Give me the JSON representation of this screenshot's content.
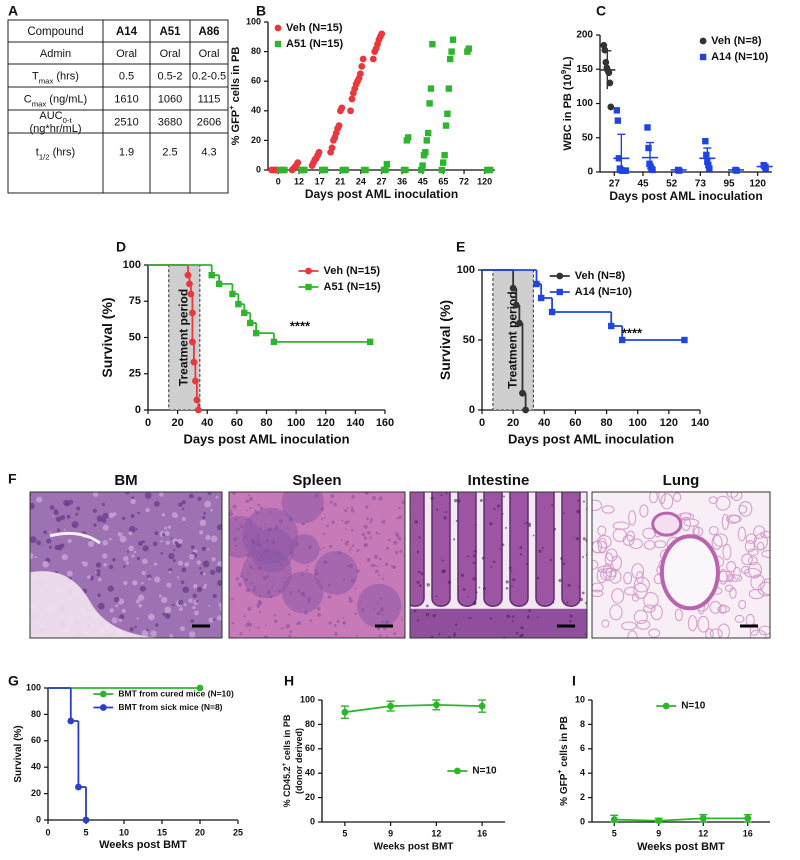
{
  "panel_a": {
    "label": "A",
    "table": {
      "header": [
        "Compound",
        "A14",
        "A51",
        "A86"
      ],
      "rows": [
        {
          "label": [
            [
              {
                "text": "Admin"
              }
            ]
          ],
          "cells": [
            "Oral",
            "Oral",
            "Oral"
          ]
        },
        {
          "label": [
            [
              {
                "text": "T"
              },
              {
                "text": "max",
                "script": "sub"
              },
              {
                "text": " (hrs)"
              }
            ]
          ],
          "cells": [
            "0.5",
            "0.5-2",
            "0.2-0.5"
          ]
        },
        {
          "label": [
            [
              {
                "text": "C"
              },
              {
                "text": "max",
                "script": "sub"
              },
              {
                "text": " (ng/mL)"
              }
            ]
          ],
          "cells": [
            "1610",
            "1060",
            "1115"
          ]
        },
        {
          "label": [
            [
              {
                "text": "AUC"
              },
              {
                "text": "0-t",
                "script": "sub"
              }
            ],
            [
              {
                "text": "(ng*hr/mL)"
              }
            ]
          ],
          "cells": [
            "2510",
            "3680",
            "2606"
          ]
        },
        {
          "label": [
            [
              {
                "text": "t"
              },
              {
                "text": "1/2",
                "script": "sub"
              },
              {
                "text": " (hrs)"
              }
            ]
          ],
          "cells": [
            "1.9",
            "2.5",
            "4.3"
          ]
        }
      ]
    }
  },
  "panel_f": {
    "label": "F",
    "images": [
      {
        "title": "BM"
      },
      {
        "title": "Spleen"
      },
      {
        "title": "Intestine"
      },
      {
        "title": "Lung"
      }
    ]
  },
  "chart_data": [
    {
      "panel": "B",
      "type": "scatter",
      "xlabel": "Days post AML inoculation",
      "ylabel": [
        [
          {
            "text": "% GFP"
          },
          {
            "text": "+",
            "script": "sup"
          },
          {
            "text": " cells in PB"
          }
        ]
      ],
      "categories": [
        "0",
        "12",
        "17",
        "21",
        "24",
        "27",
        "36",
        "45",
        "65",
        "72",
        "120"
      ],
      "ylim": [
        0,
        100
      ],
      "yticks": [
        0,
        20,
        40,
        60,
        80,
        100
      ],
      "legend": "upper left",
      "series": [
        {
          "name": "Veh (N=15)",
          "color": "#e8383d",
          "marker": "circle",
          "x": [
            "0",
            "0",
            "0",
            "0",
            "0",
            "12",
            "12",
            "12",
            "12",
            "12",
            "17",
            "17",
            "17",
            "17",
            "17",
            "17",
            "21",
            "21",
            "21",
            "21",
            "21",
            "21",
            "21",
            "21",
            "21",
            "24",
            "24",
            "24",
            "24",
            "24",
            "24",
            "24",
            "24",
            "24",
            "24",
            "27",
            "27",
            "27",
            "27",
            "27",
            "27",
            "27"
          ],
          "values": [
            0,
            0,
            0,
            0,
            0,
            0,
            1,
            2,
            3,
            5,
            3,
            5,
            7,
            8,
            10,
            12,
            12,
            15,
            20,
            22,
            25,
            28,
            30,
            40,
            42,
            40,
            48,
            52,
            55,
            58,
            60,
            62,
            65,
            70,
            75,
            75,
            80,
            82,
            85,
            88,
            90,
            92
          ]
        },
        {
          "name": "A51 (N=15)",
          "color": "#2db52d",
          "marker": "square",
          "x": [
            "0",
            "0",
            "0",
            "0",
            "12",
            "12",
            "12",
            "17",
            "17",
            "17",
            "21",
            "21",
            "21",
            "24",
            "24",
            "27",
            "27",
            "27",
            "36",
            "36",
            "36",
            "36",
            "45",
            "45",
            "45",
            "45",
            "45",
            "45",
            "45",
            "45",
            "45",
            "65",
            "65",
            "65",
            "65",
            "65",
            "65",
            "65",
            "65",
            "65",
            "72",
            "72",
            "120",
            "120",
            "120"
          ],
          "values": [
            0,
            0,
            0,
            0,
            0,
            0,
            0,
            0,
            0,
            0,
            0,
            0,
            0,
            0,
            0,
            0,
            0,
            4,
            0,
            0,
            20,
            22,
            0,
            3,
            10,
            12,
            20,
            25,
            45,
            55,
            85,
            0,
            5,
            10,
            30,
            38,
            55,
            75,
            80,
            88,
            80,
            82,
            0,
            0,
            0
          ]
        }
      ]
    },
    {
      "panel": "C",
      "type": "scatter",
      "xlabel": "Days post AML inoculation",
      "ylabel": [
        [
          {
            "text": "WBC in PB (10"
          },
          {
            "text": "9",
            "script": "sup"
          },
          {
            "text": "/L)"
          }
        ]
      ],
      "categories": [
        "27",
        "45",
        "52",
        "73",
        "95",
        "120"
      ],
      "ylim": [
        0,
        200
      ],
      "yticks": [
        0,
        50,
        100,
        150,
        200
      ],
      "legend": "upper right",
      "series": [
        {
          "name": "Veh (N=8)",
          "color": "#333333",
          "marker": "circle",
          "x": [
            "27",
            "27",
            "27",
            "27",
            "27",
            "27",
            "27",
            "27"
          ],
          "values": [
            185,
            178,
            160,
            152,
            148,
            145,
            130,
            95
          ],
          "summary": {
            "x": [
              "27"
            ],
            "mean": [
              149
            ],
            "sd": [
              28
            ]
          }
        },
        {
          "name": "A14 (N=10)",
          "color": "#1f44e0",
          "marker": "square",
          "x": [
            "27",
            "27",
            "27",
            "27",
            "27",
            "27",
            "27",
            "27",
            "27",
            "27",
            "45",
            "45",
            "45",
            "45",
            "45",
            "45",
            "52",
            "52",
            "73",
            "73",
            "73",
            "73",
            "73",
            "95",
            "95",
            "120",
            "120",
            "120"
          ],
          "values": [
            90,
            75,
            20,
            5,
            3,
            2,
            2,
            2,
            2,
            2,
            65,
            35,
            12,
            8,
            5,
            3,
            3,
            2,
            45,
            25,
            15,
            10,
            5,
            3,
            2,
            10,
            8,
            5
          ],
          "summary": {
            "x": [
              "27",
              "45",
              "52",
              "73",
              "95",
              "120"
            ],
            "mean": [
              20,
              21,
              3,
              20,
              3,
              8
            ],
            "sd": [
              35,
              22,
              1,
              15,
              1,
              3
            ]
          }
        }
      ]
    },
    {
      "panel": "D",
      "type": "survival",
      "xlabel": "Days post AML inoculation",
      "ylabel": [
        [
          {
            "text": "Survival (%)"
          }
        ]
      ],
      "xlim": [
        0,
        160
      ],
      "xticks": [
        0,
        20,
        40,
        60,
        80,
        100,
        120,
        140,
        160
      ],
      "ylim": [
        0,
        100
      ],
      "yticks": [
        0,
        25,
        50,
        75,
        100
      ],
      "legend": "upper right",
      "treatment_period": [
        14,
        35
      ],
      "treatment_label": "Treatment period",
      "annotation": "****",
      "series": [
        {
          "name": "Veh (N=15)",
          "color": "#e8383d",
          "marker": "circle",
          "x": [
            0,
            27,
            28,
            29,
            30,
            30,
            31,
            32,
            33,
            34
          ],
          "values": [
            100,
            93,
            87,
            80,
            67,
            47,
            33,
            20,
            7,
            0
          ]
        },
        {
          "name": "A51 (N=15)",
          "color": "#2db52d",
          "marker": "square",
          "x": [
            0,
            43,
            48,
            57,
            61,
            65,
            69,
            73,
            85,
            150
          ],
          "values": [
            100,
            93,
            87,
            80,
            73,
            67,
            60,
            53,
            47,
            47
          ]
        }
      ]
    },
    {
      "panel": "E",
      "type": "survival",
      "xlabel": "Days post AML inoculation",
      "ylabel": [
        [
          {
            "text": "Survival (%)"
          }
        ]
      ],
      "xlim": [
        0,
        140
      ],
      "xticks": [
        0,
        20,
        40,
        60,
        80,
        100,
        120,
        140
      ],
      "ylim": [
        0,
        100
      ],
      "yticks": [
        0,
        50,
        100
      ],
      "legend": "upper center",
      "treatment_period": [
        7,
        33
      ],
      "treatment_label": "Treatment period",
      "annotation": "****",
      "series": [
        {
          "name": "Veh (N=8)",
          "color": "#333333",
          "marker": "circle",
          "x": [
            0,
            20,
            22,
            24,
            26,
            28
          ],
          "values": [
            100,
            87,
            75,
            62,
            12,
            0
          ]
        },
        {
          "name": "A14 (N=10)",
          "color": "#1f44e0",
          "marker": "square",
          "x": [
            0,
            35,
            38,
            45,
            83,
            90,
            130
          ],
          "values": [
            100,
            90,
            80,
            70,
            60,
            50,
            50
          ]
        }
      ]
    },
    {
      "panel": "G",
      "type": "survival",
      "xlabel": "Weeks post BMT",
      "ylabel": [
        [
          {
            "text": "Survival (%)"
          }
        ]
      ],
      "xlim": [
        0,
        25
      ],
      "xticks": [
        0,
        5,
        10,
        15,
        20,
        25
      ],
      "ylim": [
        0,
        100
      ],
      "yticks": [
        0,
        20,
        40,
        60,
        80,
        100
      ],
      "legend": "upper right",
      "series": [
        {
          "name": "BMT from cured mice (N=10)",
          "color": "#2db52d",
          "marker": "circle",
          "x": [
            0,
            20
          ],
          "values": [
            100,
            100
          ]
        },
        {
          "name": "BMT from sick mice (N=8)",
          "color": "#2a3fc9",
          "marker": "circle",
          "x": [
            0,
            3,
            4,
            5
          ],
          "values": [
            100,
            75,
            25,
            0
          ]
        }
      ]
    },
    {
      "panel": "H",
      "type": "line",
      "xlabel": "Weeks post BMT",
      "ylabel": [
        [
          {
            "text": "% CD45.2"
          },
          {
            "text": "+",
            "script": "sup"
          },
          {
            "text": " cells in PB"
          }
        ],
        [
          {
            "text": "(donor derived)"
          }
        ]
      ],
      "categories": [
        "5",
        "9",
        "12",
        "16"
      ],
      "ylim": [
        0,
        100
      ],
      "yticks": [
        0,
        20,
        40,
        60,
        80,
        100
      ],
      "legend": "center right",
      "series": [
        {
          "name": "N=10",
          "color": "#2db52d",
          "marker": "circle",
          "values": [
            90,
            95,
            96,
            95
          ],
          "errors": [
            5,
            4,
            4,
            5
          ]
        }
      ]
    },
    {
      "panel": "I",
      "type": "line",
      "xlabel": "Weeks post BMT",
      "ylabel": [
        [
          {
            "text": "% GFP"
          },
          {
            "text": "+",
            "script": "sup"
          },
          {
            "text": " cells in PB"
          }
        ]
      ],
      "categories": [
        "5",
        "9",
        "12",
        "16"
      ],
      "ylim": [
        0,
        10
      ],
      "yticks": [
        0,
        2,
        4,
        6,
        8,
        10
      ],
      "legend": "upper center",
      "series": [
        {
          "name": "N=10",
          "color": "#2db52d",
          "marker": "circle",
          "values": [
            0.2,
            0.1,
            0.3,
            0.3
          ],
          "errors": [
            0.35,
            0.2,
            0.3,
            0.3
          ]
        }
      ]
    }
  ]
}
